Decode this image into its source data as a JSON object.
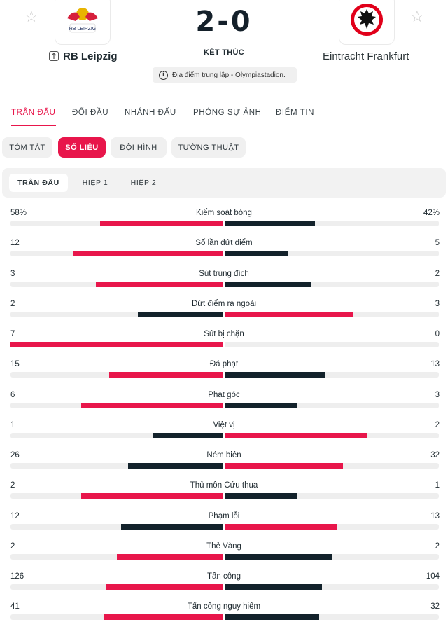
{
  "colors": {
    "accent": "#e8164b",
    "dark": "#13222b",
    "track": "#eeeeee"
  },
  "header": {
    "home": {
      "name": "RB Leipzig",
      "logo_text": "RB LEIPZIG",
      "home_icon": "arrow-up-icon"
    },
    "away": {
      "name": "Eintracht Frankfurt"
    },
    "score": "2-0",
    "status": "KẾT THÚC",
    "venue": "Địa điểm trung lập - Olympiastadion.",
    "favorite_icon": "star-icon",
    "info_icon": "info-icon"
  },
  "main_tabs": [
    "TRẬN ĐẤU",
    "ĐỐI ĐẦU",
    "NHÁNH ĐẤU",
    "PHÓNG SỰ ẢNH",
    "ĐIỂM TIN"
  ],
  "sub_tabs": [
    "TÓM TẮT",
    "SỐ LIỆU",
    "ĐỘI HÌNH",
    "TƯỜNG THUẬT"
  ],
  "period_tabs": [
    "TRẬN ĐẤU",
    "HIỆP 1",
    "HIỆP 2"
  ],
  "stats": [
    {
      "label": "Kiểm soát bóng",
      "home": "58%",
      "away": "42%",
      "home_val": 58,
      "away_val": 42,
      "leader": "home"
    },
    {
      "label": "Số lần dứt điểm",
      "home": "12",
      "away": "5",
      "home_val": 12,
      "away_val": 5,
      "leader": "home"
    },
    {
      "label": "Sút trúng đích",
      "home": "3",
      "away": "2",
      "home_val": 3,
      "away_val": 2,
      "leader": "home"
    },
    {
      "label": "Dứt điểm ra ngoài",
      "home": "2",
      "away": "3",
      "home_val": 2,
      "away_val": 3,
      "leader": "away"
    },
    {
      "label": "Sút bị chặn",
      "home": "7",
      "away": "0",
      "home_val": 7,
      "away_val": 0,
      "leader": "home"
    },
    {
      "label": "Đá phạt",
      "home": "15",
      "away": "13",
      "home_val": 15,
      "away_val": 13,
      "leader": "home"
    },
    {
      "label": "Phạt góc",
      "home": "6",
      "away": "3",
      "home_val": 6,
      "away_val": 3,
      "leader": "home"
    },
    {
      "label": "Việt vị",
      "home": "1",
      "away": "2",
      "home_val": 1,
      "away_val": 2,
      "leader": "away"
    },
    {
      "label": "Ném biên",
      "home": "26",
      "away": "32",
      "home_val": 26,
      "away_val": 32,
      "leader": "away"
    },
    {
      "label": "Thủ môn Cứu thua",
      "home": "2",
      "away": "1",
      "home_val": 2,
      "away_val": 1,
      "leader": "home"
    },
    {
      "label": "Phạm lỗi",
      "home": "12",
      "away": "13",
      "home_val": 12,
      "away_val": 13,
      "leader": "away"
    },
    {
      "label": "Thẻ Vàng",
      "home": "2",
      "away": "2",
      "home_val": 2,
      "away_val": 2,
      "leader": "none"
    },
    {
      "label": "Tấn công",
      "home": "126",
      "away": "104",
      "home_val": 126,
      "away_val": 104,
      "leader": "home"
    },
    {
      "label": "Tấn công nguy hiểm",
      "home": "41",
      "away": "32",
      "home_val": 41,
      "away_val": 32,
      "leader": "home"
    }
  ]
}
